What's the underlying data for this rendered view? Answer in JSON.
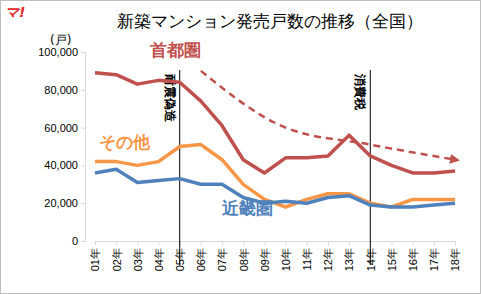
{
  "chart_data": {
    "type": "line",
    "title": "新築マンション発売戸数の推移（全国）",
    "y_label": "(戸)",
    "categories": [
      "01年",
      "02年",
      "03年",
      "04年",
      "05年",
      "06年",
      "07年",
      "08年",
      "09年",
      "10年",
      "11年",
      "12年",
      "13年",
      "14年",
      "15年",
      "16年",
      "17年",
      "18年"
    ],
    "series": [
      {
        "name": "首都圏",
        "color": "#c0504d",
        "values": [
          89000,
          88000,
          83000,
          85000,
          84000,
          74000,
          61000,
          43000,
          36000,
          44000,
          44000,
          45000,
          56000,
          45000,
          40000,
          36000,
          36000,
          37000
        ]
      },
      {
        "name": "その他",
        "color": "#f79646",
        "values": [
          42000,
          42000,
          40000,
          42000,
          50000,
          51000,
          43000,
          30000,
          22000,
          18000,
          22000,
          25000,
          25000,
          20000,
          18000,
          22000,
          22000,
          22000
        ]
      },
      {
        "name": "近畿圏",
        "color": "#4f81bd",
        "values": [
          36000,
          38000,
          31000,
          32000,
          33000,
          30000,
          30000,
          23000,
          20000,
          21000,
          20000,
          23000,
          24000,
          19000,
          18000,
          18000,
          19000,
          20000
        ]
      }
    ],
    "trend": {
      "categories": [
        "06年",
        "10年",
        "14年",
        "18年"
      ],
      "values": [
        90000,
        60000,
        51000,
        43000
      ],
      "color": "#c0504d",
      "line_style": "dashed"
    },
    "annotations": [
      {
        "text": "耐震偽造",
        "x": "05年"
      },
      {
        "text": "消費税",
        "x": "14年"
      },
      {
        "text": "マ!"
      }
    ],
    "ylim": [
      0,
      100000
    ],
    "yticks": [
      0,
      {
        "value": 20000,
        "label": "20,000"
      },
      {
        "value": 40000,
        "label": "40,000"
      },
      {
        "value": 60000,
        "label": "60,000"
      },
      {
        "value": 80000,
        "label": "80,000"
      },
      {
        "value": 100000,
        "label": "100,000"
      }
    ],
    "grid": false
  }
}
